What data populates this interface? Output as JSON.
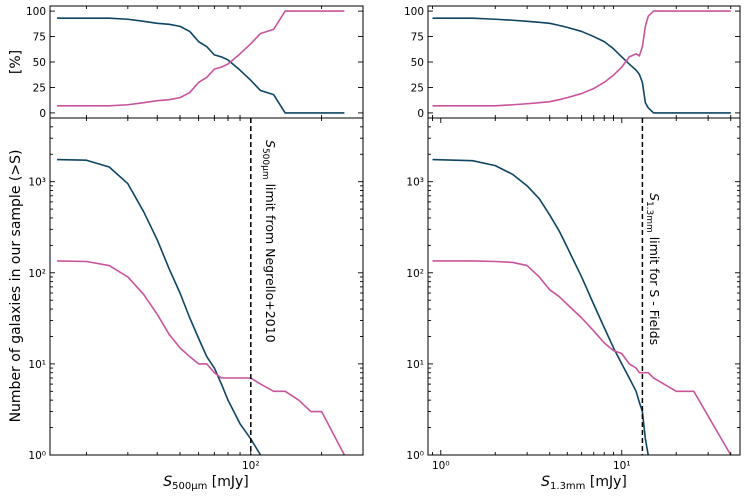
{
  "colors": {
    "all": "#0e4563",
    "subset": "#c9549c"
  },
  "labels": {
    "ylabel_top": "[%]",
    "ylabel_bottom": "Number of galaxies in our sample (>S)",
    "xlabel_left": {
      "sym": "S",
      "sub": "500μm",
      "unit": " [mJy]"
    },
    "xlabel_right": {
      "sym": "S",
      "sub": "1.3mm",
      "unit": " [mJy]"
    },
    "anno_left": {
      "sym": "S",
      "sub": "500μm",
      "rest": " limit from Negrello+2010"
    },
    "anno_right": {
      "sym": "S",
      "sub": "1.3mm",
      "rest": " limit for S - Fields"
    }
  },
  "chart_data": [
    {
      "panel": "top-left",
      "type": "line",
      "xscale": "log",
      "xlim": [
        14,
        300
      ],
      "ylim": [
        -5,
        105
      ],
      "yticks": [
        0,
        25,
        50,
        75,
        100
      ],
      "ytick_labels": [
        "0",
        "25",
        "50",
        "75",
        "100"
      ],
      "xticks": [],
      "xtick_labels": [],
      "series": [
        {
          "name": "all",
          "x": [
            15,
            20,
            25,
            30,
            35,
            40,
            45,
            50,
            55,
            60,
            65,
            70,
            75,
            80,
            90,
            100,
            110,
            125,
            140,
            160,
            180,
            200,
            250
          ],
          "y": [
            93,
            93,
            93,
            92,
            90,
            88,
            87,
            85,
            80,
            70,
            65,
            57,
            55,
            52,
            42,
            32,
            22,
            18,
            0,
            0,
            0,
            0,
            0
          ]
        },
        {
          "name": "subset",
          "x": [
            15,
            20,
            25,
            30,
            35,
            40,
            45,
            50,
            55,
            60,
            65,
            70,
            75,
            80,
            90,
            100,
            110,
            125,
            140,
            160,
            180,
            200,
            250
          ],
          "y": [
            7,
            7,
            7,
            8,
            10,
            12,
            13,
            15,
            20,
            30,
            35,
            43,
            45,
            48,
            58,
            68,
            78,
            82,
            100,
            100,
            100,
            100,
            100
          ]
        }
      ],
      "vline": null
    },
    {
      "panel": "top-right",
      "type": "line",
      "xscale": "log",
      "xlim": [
        0.85,
        45
      ],
      "ylim": [
        -5,
        105
      ],
      "yticks": [
        0,
        25,
        50,
        75,
        100
      ],
      "ytick_labels": [
        "0",
        "25",
        "50",
        "75",
        "100"
      ],
      "xticks": [],
      "xtick_labels": [],
      "series": [
        {
          "name": "all",
          "x": [
            0.9,
            1.5,
            2,
            2.5,
            3,
            3.5,
            4,
            4.5,
            5,
            6,
            7,
            8,
            9,
            10,
            11,
            12,
            12.5,
            13,
            13.5,
            14,
            15,
            20,
            40
          ],
          "y": [
            93,
            93,
            92,
            91,
            90,
            89,
            88,
            86,
            84,
            80,
            75,
            70,
            63,
            55,
            48,
            42,
            38,
            30,
            10,
            5,
            0,
            0,
            0
          ]
        },
        {
          "name": "subset",
          "x": [
            0.9,
            1.5,
            2,
            2.5,
            3,
            3.5,
            4,
            4.5,
            5,
            6,
            7,
            8,
            9,
            10,
            11,
            12,
            12.5,
            13,
            13.5,
            14,
            15,
            20,
            40
          ],
          "y": [
            7,
            7,
            7,
            8,
            9,
            10,
            11,
            13,
            15,
            19,
            24,
            30,
            37,
            45,
            55,
            58,
            56,
            65,
            85,
            95,
            100,
            100,
            100
          ]
        }
      ],
      "vline": null
    },
    {
      "panel": "bottom-left",
      "type": "line",
      "xscale": "log",
      "yscale": "log",
      "xlim": [
        14,
        300
      ],
      "ylim": [
        1,
        5000
      ],
      "yticks": [
        1,
        10,
        100,
        1000
      ],
      "ytick_labels": [
        "10⁰",
        "10¹",
        "10²",
        "10³"
      ],
      "xticks": [
        100
      ],
      "xtick_labels": [
        "10²"
      ],
      "xlabel": "S500μm [mJy]",
      "series": [
        {
          "name": "all",
          "x": [
            15,
            20,
            25,
            30,
            35,
            40,
            45,
            50,
            55,
            60,
            65,
            70,
            75,
            80,
            90,
            100,
            110
          ],
          "y": [
            1750,
            1720,
            1450,
            950,
            470,
            230,
            110,
            60,
            32,
            19,
            12,
            9,
            6,
            4,
            2.2,
            1.5,
            1
          ]
        },
        {
          "name": "subset",
          "x": [
            15,
            20,
            25,
            30,
            35,
            40,
            45,
            50,
            55,
            60,
            65,
            70,
            75,
            80,
            90,
            100,
            110,
            125,
            140,
            160,
            180,
            200,
            250
          ],
          "y": [
            135,
            133,
            120,
            90,
            58,
            35,
            21,
            15,
            12,
            10,
            10,
            8,
            7,
            7,
            7,
            7,
            6,
            5,
            5,
            4,
            3,
            3,
            1
          ]
        }
      ],
      "vline": {
        "x": 100
      }
    },
    {
      "panel": "bottom-right",
      "type": "line",
      "xscale": "log",
      "yscale": "log",
      "xlim": [
        0.85,
        45
      ],
      "ylim": [
        1,
        5000
      ],
      "yticks": [
        1,
        10,
        100,
        1000
      ],
      "ytick_labels": [
        "10⁰",
        "10¹",
        "10²",
        "10³"
      ],
      "xticks": [
        1,
        10
      ],
      "xtick_labels": [
        "10⁰",
        "10¹"
      ],
      "xlabel": "S1.3mm [mJy]",
      "series": [
        {
          "name": "all",
          "x": [
            0.9,
            1.5,
            2,
            2.5,
            3,
            3.5,
            4,
            4.5,
            5,
            6,
            7,
            8,
            9,
            10,
            11,
            12,
            12.5,
            13,
            13.5,
            14
          ],
          "y": [
            1750,
            1700,
            1500,
            1200,
            900,
            650,
            430,
            290,
            190,
            90,
            45,
            25,
            15,
            10,
            7,
            5,
            3.8,
            3,
            1.5,
            1
          ]
        },
        {
          "name": "subset",
          "x": [
            0.9,
            1.5,
            2,
            2.5,
            3,
            3.5,
            4,
            4.5,
            5,
            6,
            7,
            8,
            9,
            10,
            11,
            12,
            12.5,
            13,
            13.5,
            14,
            15,
            20,
            25,
            40
          ],
          "y": [
            135,
            135,
            133,
            130,
            120,
            90,
            65,
            55,
            45,
            32,
            23,
            17,
            14,
            13,
            10,
            9,
            8,
            8,
            8,
            8,
            7,
            5,
            5,
            1
          ]
        }
      ],
      "vline": {
        "x": 13
      }
    }
  ]
}
